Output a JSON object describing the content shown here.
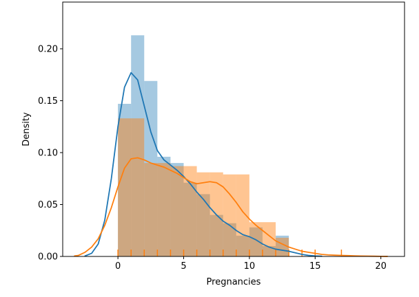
{
  "chart_data": {
    "type": "histogram",
    "title": "",
    "xlabel": "Pregnancies",
    "ylabel": "Density",
    "xlim": [
      -4.2,
      21.8
    ],
    "ylim": [
      0,
      0.245
    ],
    "xticks": [
      0,
      5,
      10,
      15,
      20
    ],
    "yticks": [
      0.0,
      0.05,
      0.1,
      0.15,
      0.2
    ],
    "ytick_labels": [
      "0.00",
      "0.05",
      "0.10",
      "0.15",
      "0.20"
    ],
    "grid": false,
    "legend": "none",
    "series": [
      {
        "color": "#1f77b4",
        "bar_opacity": 0.4,
        "hist": {
          "bins": [
            [
              0,
              1
            ],
            [
              1,
              2
            ],
            [
              2,
              3
            ],
            [
              3,
              4
            ],
            [
              4,
              5
            ],
            [
              5,
              6
            ],
            [
              6,
              7
            ],
            [
              7,
              8
            ],
            [
              8,
              9
            ],
            [
              9,
              10
            ],
            [
              10,
              11
            ],
            [
              11,
              12
            ],
            [
              12,
              13
            ]
          ],
          "density": [
            0.147,
            0.213,
            0.169,
            0.096,
            0.09,
            0.071,
            0.06,
            0.04,
            0.032,
            0.02,
            0.028,
            0.01,
            0.02
          ]
        },
        "kde": {
          "x": [
            -2.5,
            -2.0,
            -1.5,
            -1.0,
            -0.5,
            0.0,
            0.5,
            1.0,
            1.5,
            2.0,
            2.5,
            3.0,
            3.5,
            4.0,
            4.5,
            5.0,
            5.5,
            6.0,
            6.5,
            7.0,
            7.5,
            8.0,
            8.5,
            9.0,
            9.5,
            10.0,
            10.5,
            11.0,
            11.5,
            12.0,
            12.5,
            13.0,
            13.5,
            14.0,
            14.5,
            15.0,
            15.5
          ],
          "y": [
            0.0005,
            0.003,
            0.012,
            0.035,
            0.075,
            0.125,
            0.163,
            0.177,
            0.17,
            0.145,
            0.12,
            0.102,
            0.093,
            0.088,
            0.083,
            0.077,
            0.07,
            0.062,
            0.055,
            0.047,
            0.04,
            0.034,
            0.03,
            0.025,
            0.021,
            0.019,
            0.016,
            0.012,
            0.009,
            0.007,
            0.006,
            0.005,
            0.0035,
            0.002,
            0.001,
            0.0005,
            0.0002
          ]
        }
      },
      {
        "color": "#ff7f0e",
        "bar_opacity": 0.45,
        "hist": {
          "bins": [
            [
              0,
              2
            ],
            [
              2,
              4
            ],
            [
              4,
              6
            ],
            [
              6,
              7
            ],
            [
              7,
              8
            ],
            [
              8,
              9
            ],
            [
              9,
              10
            ],
            [
              10,
              11
            ],
            [
              11,
              12
            ],
            [
              12,
              13
            ]
          ],
          "density": [
            0.133,
            0.09,
            0.087,
            0.081,
            0.081,
            0.079,
            0.079,
            0.033,
            0.033,
            0.018
          ]
        },
        "kde": {
          "x": [
            -3.3,
            -3.0,
            -2.5,
            -2.0,
            -1.5,
            -1.0,
            -0.5,
            0.0,
            0.5,
            1.0,
            1.5,
            2.0,
            2.5,
            3.0,
            3.5,
            4.0,
            4.5,
            5.0,
            5.5,
            6.0,
            6.5,
            7.0,
            7.5,
            8.0,
            8.5,
            9.0,
            9.5,
            10.0,
            10.5,
            11.0,
            11.5,
            12.0,
            12.5,
            13.0,
            13.5,
            14.0,
            14.5,
            15.0,
            15.5,
            16.0,
            16.5,
            17.0,
            17.5,
            18.0,
            18.5,
            19.0,
            19.5,
            20.0,
            20.5
          ],
          "y": [
            0.0005,
            0.001,
            0.004,
            0.009,
            0.017,
            0.03,
            0.047,
            0.067,
            0.085,
            0.094,
            0.095,
            0.093,
            0.09,
            0.088,
            0.086,
            0.083,
            0.08,
            0.076,
            0.072,
            0.07,
            0.071,
            0.072,
            0.071,
            0.067,
            0.06,
            0.052,
            0.043,
            0.036,
            0.03,
            0.025,
            0.02,
            0.015,
            0.012,
            0.009,
            0.007,
            0.005,
            0.004,
            0.003,
            0.002,
            0.0015,
            0.0012,
            0.001,
            0.0008,
            0.0006,
            0.0004,
            0.0003,
            0.0002,
            0.0001,
            5e-05
          ]
        },
        "rug": [
          0,
          1,
          2,
          3,
          4,
          5,
          6,
          7,
          8,
          9,
          10,
          11,
          12,
          13,
          14,
          15,
          17
        ]
      }
    ]
  }
}
